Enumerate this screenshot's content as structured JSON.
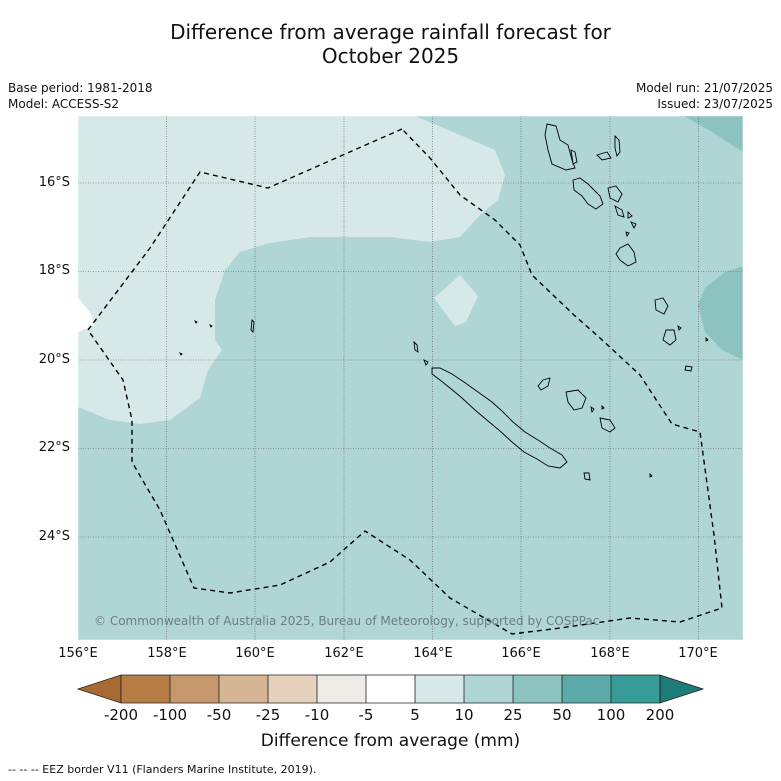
{
  "title_line1": "Difference from average rainfall forecast for",
  "title_line2": "October 2025",
  "base_period": "Base period: 1981-2018",
  "model": "Model: ACCESS-S2",
  "model_run": "Model run: 21/07/2025",
  "issued": "Issued: 23/07/2025",
  "lat_ticks": [
    "16°S",
    "18°S",
    "20°S",
    "22°S",
    "24°S"
  ],
  "lon_ticks": [
    "156°E",
    "158°E",
    "160°E",
    "162°E",
    "164°E",
    "166°E",
    "168°E",
    "170°E"
  ],
  "colorbar": {
    "title": "Difference from average (mm)",
    "labels": [
      "-200",
      "-100",
      "-50",
      "-25",
      "-10",
      "-5",
      "5",
      "10",
      "25",
      "50",
      "100",
      "200"
    ],
    "colors": [
      "#a86a33",
      "#b57c45",
      "#c6966c",
      "#d6b595",
      "#e6d1bd",
      "#efebe7",
      "#ffffff",
      "#d6e9e8",
      "#afd6d5",
      "#8cc2c0",
      "#5ca9a9",
      "#379b97",
      "#1d7b78"
    ]
  },
  "legend_note": "--  --  -- EEZ border V11 (Flanders Marine Institute, 2019).",
  "copyright": "© Commonwealth of Australia 2025, Bureau of Meteorology, supported by COSPPac"
}
